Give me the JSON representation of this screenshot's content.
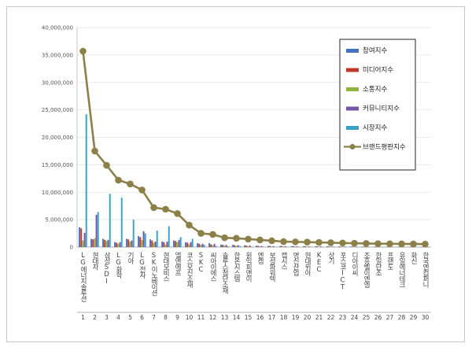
{
  "chart_data": {
    "type": "bar",
    "title": "",
    "xlabel": "",
    "ylabel": "",
    "ylim": [
      0,
      40000000
    ],
    "yticks": [
      "0",
      "5,000,000",
      "10,000,000",
      "15,000,000",
      "20,000,000",
      "25,000,000",
      "30,000,000",
      "35,000,000",
      "40,000,000"
    ],
    "ytick_values": [
      0,
      5000000,
      10000000,
      15000000,
      20000000,
      25000000,
      30000000,
      35000000,
      40000000
    ],
    "grid": true,
    "legend_position": "top-right",
    "numbers": [
      "1",
      "2",
      "3",
      "4",
      "5",
      "6",
      "7",
      "8",
      "9",
      "10",
      "11",
      "12",
      "13",
      "14",
      "15",
      "16",
      "17",
      "18",
      "19",
      "20",
      "21",
      "22",
      "23",
      "24",
      "25",
      "26",
      "27",
      "28",
      "29",
      "30"
    ],
    "categories": [
      "LG에너지솔루션",
      "현대차",
      "삼성SDI",
      "LG화학",
      "기아",
      "LG전자",
      "SK이노베이션",
      "현대모비스",
      "엘앤에프",
      "코스모신소재",
      "SKC",
      "씨아이에스",
      "솔루스첨단소재",
      "한온시스템",
      "원익피앤이",
      "엔켐",
      "보성파워텍",
      "캡시스",
      "명신산업",
      "현대위아",
      "KEC",
      "상기",
      "포스코ICT",
      "디아이씨",
      "조흥벨이엔엠",
      "한일단조",
      "프랜도",
      "유일에너테크",
      "화신",
      "한국엔컴퍼니"
    ],
    "series": [
      {
        "name": "참여지수",
        "color": "#4472c4",
        "kind": "bar",
        "values": [
          3600000,
          1500000,
          1500000,
          900000,
          1500000,
          2000000,
          1400000,
          1000000,
          1200000,
          900000,
          700000,
          700000,
          450000,
          400000,
          320000,
          250000,
          220000,
          200000,
          180000,
          160000,
          150000,
          140000,
          120000,
          110000,
          100000,
          90000,
          80000,
          70000,
          60000,
          50000
        ]
      },
      {
        "name": "미디어지수",
        "color": "#c0392b",
        "kind": "bar",
        "values": [
          3400000,
          1400000,
          1300000,
          800000,
          1400000,
          1800000,
          1200000,
          900000,
          1100000,
          800000,
          600000,
          500000,
          400000,
          350000,
          280000,
          220000,
          200000,
          180000,
          160000,
          140000,
          130000,
          120000,
          100000,
          90000,
          80000,
          70000,
          60000,
          55000,
          50000,
          40000
        ]
      },
      {
        "name": "소통지수",
        "color": "#8db43c",
        "kind": "bar",
        "values": [
          1200000,
          1600000,
          1100000,
          600000,
          1000000,
          1300000,
          800000,
          500000,
          900000,
          500000,
          400000,
          300000,
          250000,
          200000,
          150000,
          120000,
          100000,
          90000,
          80000,
          70000,
          60000,
          55000,
          50000,
          45000,
          40000,
          35000,
          30000,
          25000,
          20000,
          15000
        ]
      },
      {
        "name": "커뮤니티지수",
        "color": "#7955a5",
        "kind": "bar",
        "values": [
          2600000,
          5900000,
          1300000,
          900000,
          1200000,
          2900000,
          1000000,
          1000000,
          1300000,
          900000,
          600000,
          600000,
          400000,
          350000,
          300000,
          200000,
          180000,
          160000,
          140000,
          130000,
          120000,
          110000,
          100000,
          90000,
          80000,
          70000,
          60000,
          55000,
          50000,
          40000
        ]
      },
      {
        "name": "시장지수",
        "color": "#3aa3c6",
        "kind": "bar",
        "values": [
          24200000,
          6400000,
          9700000,
          9000000,
          5000000,
          2500000,
          3000000,
          3800000,
          1800000,
          1500000,
          400000,
          200000,
          150000,
          200000,
          100000,
          80000,
          70000,
          60000,
          50000,
          45000,
          40000,
          35000,
          30000,
          28000,
          25000,
          22000,
          20000,
          18000,
          16000,
          15000
        ]
      },
      {
        "name": "브랜드평판지수",
        "color": "#8b8148",
        "kind": "line",
        "values": [
          35700000,
          17500000,
          14900000,
          12200000,
          11500000,
          10400000,
          7200000,
          6900000,
          6100000,
          4000000,
          2500000,
          2300000,
          1700000,
          1600000,
          1450000,
          1300000,
          1150000,
          1000000,
          950000,
          900000,
          850000,
          800000,
          750000,
          700000,
          650000,
          620000,
          600000,
          580000,
          560000,
          540000
        ]
      }
    ]
  }
}
